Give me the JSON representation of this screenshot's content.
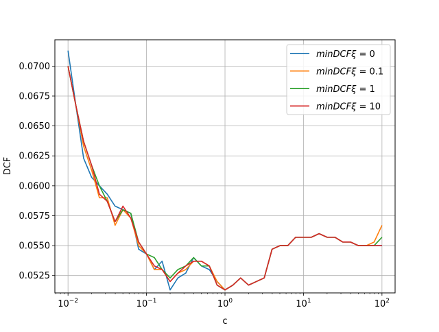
{
  "chart_data": {
    "type": "line",
    "title": "",
    "xlabel": "c",
    "ylabel": "DCF",
    "xscale": "log",
    "xlim": [
      0.0068,
      147
    ],
    "ylim": [
      0.05105,
      0.0722
    ],
    "grid": true,
    "legend_position": "top-right",
    "xticks": [
      {
        "value": 0.01,
        "base": "10",
        "exp": "−2"
      },
      {
        "value": 0.1,
        "base": "10",
        "exp": "−1"
      },
      {
        "value": 1,
        "base": "10",
        "exp": "0"
      },
      {
        "value": 10,
        "base": "10",
        "exp": "1"
      },
      {
        "value": 100,
        "base": "10",
        "exp": "2"
      }
    ],
    "yticks": [
      {
        "value": 0.0525,
        "label": "0.0525"
      },
      {
        "value": 0.055,
        "label": "0.0550"
      },
      {
        "value": 0.0575,
        "label": "0.0575"
      },
      {
        "value": 0.06,
        "label": "0.0600"
      },
      {
        "value": 0.0625,
        "label": "0.0625"
      },
      {
        "value": 0.065,
        "label": "0.0650"
      },
      {
        "value": 0.0675,
        "label": "0.0675"
      },
      {
        "value": 0.07,
        "label": "0.0700"
      }
    ],
    "x": [
      0.01,
      0.0126,
      0.0158,
      0.02,
      0.0251,
      0.0316,
      0.0398,
      0.0501,
      0.0631,
      0.0794,
      0.1,
      0.126,
      0.158,
      0.2,
      0.251,
      0.316,
      0.398,
      0.501,
      0.631,
      0.794,
      1.0,
      1.26,
      1.58,
      2.0,
      2.51,
      3.16,
      3.98,
      5.01,
      6.31,
      7.94,
      10.0,
      12.6,
      15.8,
      20.0,
      25.1,
      31.6,
      39.8,
      50.1,
      63.1,
      79.4,
      100.0
    ],
    "series": [
      {
        "name": "minDCFξ = 0",
        "legend_main": "minDCFξ",
        "legend_suffix": " = 0",
        "color": "#1f77b4",
        "values": [
          0.0713,
          0.0667,
          0.0623,
          0.0607,
          0.06,
          0.0593,
          0.0583,
          0.058,
          0.0577,
          0.0547,
          0.0543,
          0.053,
          0.0537,
          0.0513,
          0.0523,
          0.0527,
          0.054,
          0.0533,
          0.053,
          0.052,
          0.0513,
          0.0517,
          0.0523,
          0.0517,
          0.052,
          0.0523,
          0.0547,
          0.055,
          0.055,
          0.0557,
          0.0557,
          0.0557,
          0.056,
          0.0557,
          0.0557,
          0.0553,
          0.0553,
          0.055,
          0.055,
          0.055,
          0.055
        ]
      },
      {
        "name": "minDCFξ = 0.1",
        "legend_main": "minDCFξ",
        "legend_suffix": " = 0.1",
        "color": "#ff7f0e",
        "values": [
          0.07,
          0.0667,
          0.0633,
          0.0613,
          0.059,
          0.059,
          0.0567,
          0.058,
          0.0573,
          0.055,
          0.0543,
          0.053,
          0.053,
          0.052,
          0.0527,
          0.053,
          0.0537,
          0.0537,
          0.0533,
          0.052,
          0.0513,
          0.0517,
          0.0523,
          0.0517,
          0.052,
          0.0523,
          0.0547,
          0.055,
          0.055,
          0.0557,
          0.0557,
          0.0557,
          0.056,
          0.0557,
          0.0557,
          0.0553,
          0.0553,
          0.055,
          0.055,
          0.0553,
          0.0567
        ]
      },
      {
        "name": "minDCFξ = 1",
        "legend_main": "minDCFξ",
        "legend_suffix": " = 1",
        "color": "#2ca02c",
        "values": [
          0.07,
          0.0667,
          0.0637,
          0.0617,
          0.06,
          0.0587,
          0.057,
          0.058,
          0.0577,
          0.0553,
          0.0543,
          0.054,
          0.053,
          0.0523,
          0.053,
          0.0533,
          0.054,
          0.0533,
          0.0533,
          0.0517,
          0.0513,
          0.0517,
          0.0523,
          0.0517,
          0.052,
          0.0523,
          0.0547,
          0.055,
          0.055,
          0.0557,
          0.0557,
          0.0557,
          0.056,
          0.0557,
          0.0557,
          0.0553,
          0.0553,
          0.055,
          0.055,
          0.055,
          0.0557
        ]
      },
      {
        "name": "minDCFξ = 10",
        "legend_main": "minDCFξ",
        "legend_suffix": " = 10",
        "color": "#d62728",
        "values": [
          0.07,
          0.0667,
          0.0637,
          0.0617,
          0.0593,
          0.0587,
          0.057,
          0.0583,
          0.0573,
          0.0553,
          0.0543,
          0.0533,
          0.053,
          0.052,
          0.0527,
          0.0533,
          0.0537,
          0.0537,
          0.0533,
          0.0517,
          0.0513,
          0.0517,
          0.0523,
          0.0517,
          0.052,
          0.0523,
          0.0547,
          0.055,
          0.055,
          0.0557,
          0.0557,
          0.0557,
          0.056,
          0.0557,
          0.0557,
          0.0553,
          0.0553,
          0.055,
          0.055,
          0.055,
          0.055
        ]
      }
    ]
  }
}
